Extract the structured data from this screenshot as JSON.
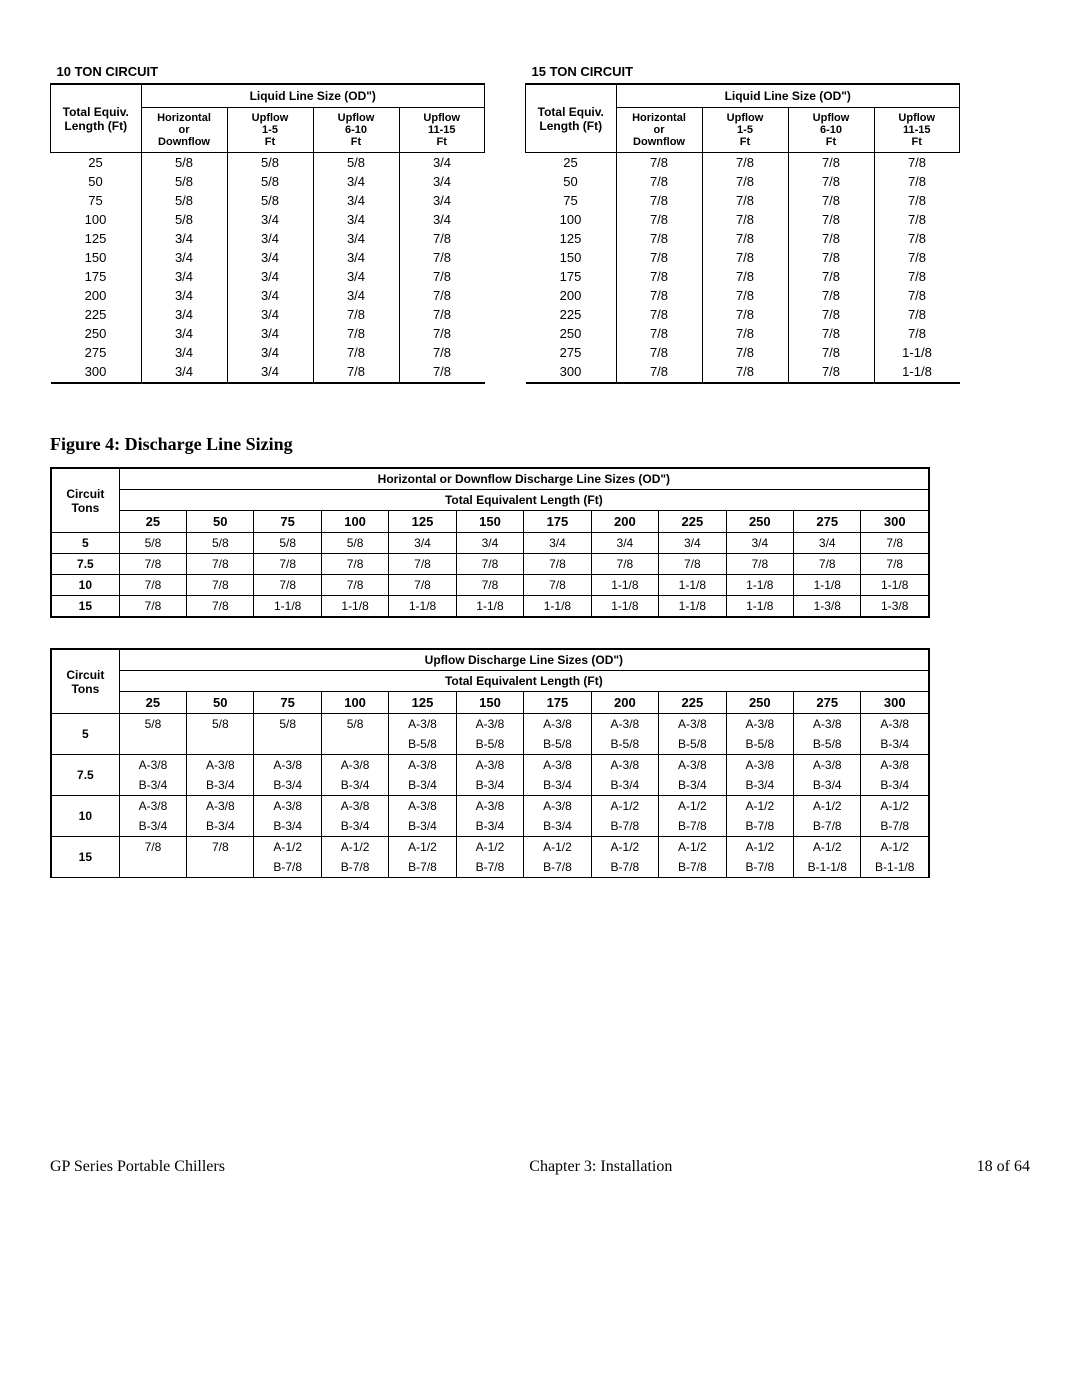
{
  "top_tables": [
    {
      "title": "10 TON CIRCUIT",
      "span_header": "Liquid Line Size (OD\")",
      "col_headers": [
        "Total Equiv. Length (Ft)",
        "Horizontal or Downflow",
        "Upflow 1-5 Ft",
        "Upflow 6-10 Ft",
        "Upflow 11-15 Ft"
      ],
      "rows": [
        [
          "25",
          "5/8",
          "5/8",
          "5/8",
          "3/4"
        ],
        [
          "50",
          "5/8",
          "5/8",
          "3/4",
          "3/4"
        ],
        [
          "75",
          "5/8",
          "5/8",
          "3/4",
          "3/4"
        ],
        [
          "100",
          "5/8",
          "3/4",
          "3/4",
          "3/4"
        ],
        [
          "125",
          "3/4",
          "3/4",
          "3/4",
          "7/8"
        ],
        [
          "150",
          "3/4",
          "3/4",
          "3/4",
          "7/8"
        ],
        [
          "175",
          "3/4",
          "3/4",
          "3/4",
          "7/8"
        ],
        [
          "200",
          "3/4",
          "3/4",
          "3/4",
          "7/8"
        ],
        [
          "225",
          "3/4",
          "3/4",
          "7/8",
          "7/8"
        ],
        [
          "250",
          "3/4",
          "3/4",
          "7/8",
          "7/8"
        ],
        [
          "275",
          "3/4",
          "3/4",
          "7/8",
          "7/8"
        ],
        [
          "300",
          "3/4",
          "3/4",
          "7/8",
          "7/8"
        ]
      ]
    },
    {
      "title": "15 TON CIRCUIT",
      "span_header": "Liquid Line Size (OD\")",
      "col_headers": [
        "Total Equiv. Length (Ft)",
        "Horizontal or Downflow",
        "Upflow 1-5 Ft",
        "Upflow 6-10 Ft",
        "Upflow 11-15 Ft"
      ],
      "rows": [
        [
          "25",
          "7/8",
          "7/8",
          "7/8",
          "7/8"
        ],
        [
          "50",
          "7/8",
          "7/8",
          "7/8",
          "7/8"
        ],
        [
          "75",
          "7/8",
          "7/8",
          "7/8",
          "7/8"
        ],
        [
          "100",
          "7/8",
          "7/8",
          "7/8",
          "7/8"
        ],
        [
          "125",
          "7/8",
          "7/8",
          "7/8",
          "7/8"
        ],
        [
          "150",
          "7/8",
          "7/8",
          "7/8",
          "7/8"
        ],
        [
          "175",
          "7/8",
          "7/8",
          "7/8",
          "7/8"
        ],
        [
          "200",
          "7/8",
          "7/8",
          "7/8",
          "7/8"
        ],
        [
          "225",
          "7/8",
          "7/8",
          "7/8",
          "7/8"
        ],
        [
          "250",
          "7/8",
          "7/8",
          "7/8",
          "7/8"
        ],
        [
          "275",
          "7/8",
          "7/8",
          "7/8",
          "1-1/8"
        ],
        [
          "300",
          "7/8",
          "7/8",
          "7/8",
          "1-1/8"
        ]
      ]
    }
  ],
  "figure_title": "Figure 4: Discharge Line Sizing",
  "horiz_table": {
    "header1": "Horizontal or Downflow Discharge Line Sizes (OD\")",
    "header2": "Total Equivalent Length (Ft)",
    "tons_label": "Circuit Tons",
    "lengths": [
      "25",
      "50",
      "75",
      "100",
      "125",
      "150",
      "175",
      "200",
      "225",
      "250",
      "275",
      "300"
    ],
    "rows": [
      {
        "tons": "5",
        "vals": [
          "5/8",
          "5/8",
          "5/8",
          "5/8",
          "3/4",
          "3/4",
          "3/4",
          "3/4",
          "3/4",
          "3/4",
          "3/4",
          "7/8"
        ]
      },
      {
        "tons": "7.5",
        "vals": [
          "7/8",
          "7/8",
          "7/8",
          "7/8",
          "7/8",
          "7/8",
          "7/8",
          "7/8",
          "7/8",
          "7/8",
          "7/8",
          "7/8"
        ]
      },
      {
        "tons": "10",
        "vals": [
          "7/8",
          "7/8",
          "7/8",
          "7/8",
          "7/8",
          "7/8",
          "7/8",
          "1-1/8",
          "1-1/8",
          "1-1/8",
          "1-1/8",
          "1-1/8"
        ]
      },
      {
        "tons": "15",
        "vals": [
          "7/8",
          "7/8",
          "1-1/8",
          "1-1/8",
          "1-1/8",
          "1-1/8",
          "1-1/8",
          "1-1/8",
          "1-1/8",
          "1-1/8",
          "1-3/8",
          "1-3/8"
        ]
      }
    ]
  },
  "upflow_table": {
    "header1": "Upflow Discharge Line Sizes (OD\")",
    "header2": "Total Equivalent Length (Ft)",
    "tons_label": "Circuit Tons",
    "lengths": [
      "25",
      "50",
      "75",
      "100",
      "125",
      "150",
      "175",
      "200",
      "225",
      "250",
      "275",
      "300"
    ],
    "rows": [
      {
        "tons": "5",
        "a": [
          "5/8",
          "5/8",
          "5/8",
          "5/8",
          "A-3/8",
          "A-3/8",
          "A-3/8",
          "A-3/8",
          "A-3/8",
          "A-3/8",
          "A-3/8",
          "A-3/8"
        ],
        "b": [
          "",
          "",
          "",
          "",
          "B-5/8",
          "B-5/8",
          "B-5/8",
          "B-5/8",
          "B-5/8",
          "B-5/8",
          "B-5/8",
          "B-3/4"
        ]
      },
      {
        "tons": "7.5",
        "a": [
          "A-3/8",
          "A-3/8",
          "A-3/8",
          "A-3/8",
          "A-3/8",
          "A-3/8",
          "A-3/8",
          "A-3/8",
          "A-3/8",
          "A-3/8",
          "A-3/8",
          "A-3/8"
        ],
        "b": [
          "B-3/4",
          "B-3/4",
          "B-3/4",
          "B-3/4",
          "B-3/4",
          "B-3/4",
          "B-3/4",
          "B-3/4",
          "B-3/4",
          "B-3/4",
          "B-3/4",
          "B-3/4"
        ]
      },
      {
        "tons": "10",
        "a": [
          "A-3/8",
          "A-3/8",
          "A-3/8",
          "A-3/8",
          "A-3/8",
          "A-3/8",
          "A-3/8",
          "A-1/2",
          "A-1/2",
          "A-1/2",
          "A-1/2",
          "A-1/2"
        ],
        "b": [
          "B-3/4",
          "B-3/4",
          "B-3/4",
          "B-3/4",
          "B-3/4",
          "B-3/4",
          "B-3/4",
          "B-7/8",
          "B-7/8",
          "B-7/8",
          "B-7/8",
          "B-7/8"
        ]
      },
      {
        "tons": "15",
        "a": [
          "7/8",
          "7/8",
          "A-1/2",
          "A-1/2",
          "A-1/2",
          "A-1/2",
          "A-1/2",
          "A-1/2",
          "A-1/2",
          "A-1/2",
          "A-1/2",
          "A-1/2"
        ],
        "b": [
          "",
          "",
          "B-7/8",
          "B-7/8",
          "B-7/8",
          "B-7/8",
          "B-7/8",
          "B-7/8",
          "B-7/8",
          "B-7/8",
          "B-1-1/8",
          "B-1-1/8"
        ]
      }
    ]
  },
  "footer": {
    "left": "GP Series Portable Chillers",
    "center": "Chapter 3: Installation",
    "right": "18 of 64"
  }
}
